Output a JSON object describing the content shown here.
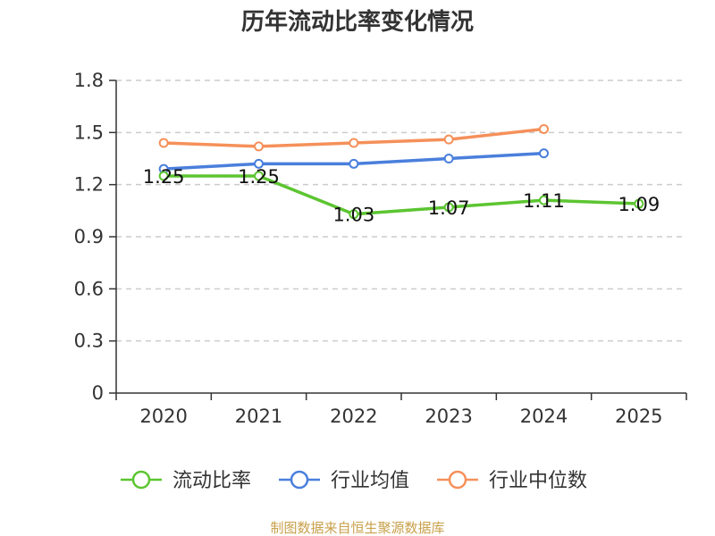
{
  "chart_data": {
    "type": "line",
    "title": "历年流动比率变化情况",
    "categories": [
      "2020",
      "2021",
      "2022",
      "2023",
      "2024",
      "2025"
    ],
    "ylim": [
      0,
      1.8
    ],
    "yticks": [
      "0",
      "0.3",
      "0.6",
      "0.9",
      "1.2",
      "1.5",
      "1.8"
    ],
    "ytick_values": [
      0,
      0.3,
      0.6,
      0.9,
      1.2,
      1.5,
      1.8
    ],
    "grid": true,
    "legend_position": "bottom",
    "series": [
      {
        "name": "流动比率",
        "color": "#5cc531",
        "values": [
          1.25,
          1.25,
          1.03,
          1.07,
          1.11,
          1.09
        ],
        "labels": [
          "1.25",
          "1.25",
          "1.03",
          "1.07",
          "1.11",
          "1.09"
        ]
      },
      {
        "name": "行业均值",
        "color": "#4a7fdc",
        "values": [
          1.29,
          1.32,
          1.32,
          1.35,
          1.38,
          null
        ]
      },
      {
        "name": "行业中位数",
        "color": "#f5905a",
        "values": [
          1.44,
          1.42,
          1.44,
          1.46,
          1.52,
          null
        ]
      }
    ],
    "source": "制图数据来自恒生聚源数据库"
  }
}
